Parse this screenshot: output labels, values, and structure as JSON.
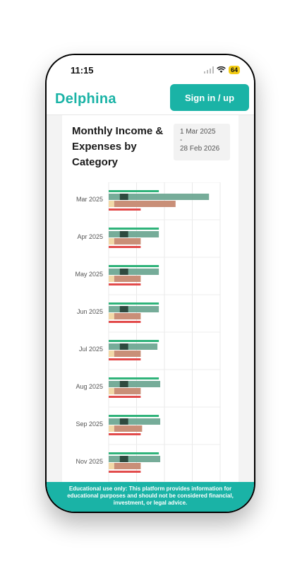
{
  "status": {
    "time": "11:15",
    "battery": "64"
  },
  "header": {
    "logo": "Delphina",
    "signin_label": "Sign in / up"
  },
  "card": {
    "title": "Monthly Income & Expenses by Category",
    "date_from": "1 Mar 2025",
    "date_sep": "-",
    "date_to": "28 Feb 2026"
  },
  "chart_data": {
    "type": "bar",
    "orientation": "horizontal",
    "title": "Monthly Income & Expenses by Category",
    "categories": [
      "Mar 2025",
      "Apr 2025",
      "May 2025",
      "Jun 2025",
      "Jul 2025",
      "Aug 2025",
      "Sep 2025",
      "Nov 2025"
    ],
    "grid": true,
    "xlim": [
      0,
      4
    ],
    "series": [
      {
        "values": [
          1.8,
          1.8,
          1.8,
          1.8,
          1.8,
          1.8,
          1.8,
          1.8
        ],
        "color": "#2fb37a"
      },
      {
        "values": [
          3.6,
          1.8,
          1.8,
          1.8,
          1.75,
          1.85,
          1.85,
          1.85
        ],
        "color": "#6fa893"
      },
      {
        "values": [
          0.3,
          0.3,
          0.3,
          0.3,
          0.3,
          0.3,
          0.3,
          0.3
        ],
        "color": "#2e4a3f"
      },
      {
        "values": [
          0.2,
          0.2,
          0.2,
          0.2,
          0.2,
          0.2,
          0.2,
          0.2
        ],
        "color": "#f2d9a8"
      },
      {
        "values": [
          2.4,
          1.15,
          1.15,
          1.15,
          1.15,
          1.15,
          1.2,
          1.15
        ],
        "color": "#c98f78"
      },
      {
        "values": [
          1.15,
          1.15,
          1.15,
          1.15,
          1.15,
          1.15,
          1.15,
          1.15
        ],
        "color": "#e24b4b"
      }
    ]
  },
  "disclaimer": "Educational use only: This platform provides information for educational purposes and should not be considered financial, investment, or legal advice."
}
